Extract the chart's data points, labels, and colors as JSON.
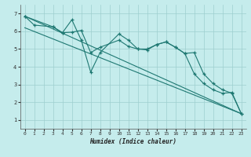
{
  "xlabel": "Humidex (Indice chaleur)",
  "background_color": "#c5ecec",
  "grid_color": "#9ecece",
  "line_color": "#1e7872",
  "xlim": [
    -0.5,
    23.5
  ],
  "ylim": [
    0.5,
    7.5
  ],
  "yticks": [
    1,
    2,
    3,
    4,
    5,
    6,
    7
  ],
  "xticks": [
    0,
    1,
    2,
    3,
    4,
    5,
    6,
    7,
    8,
    9,
    10,
    11,
    12,
    13,
    14,
    15,
    16,
    17,
    18,
    19,
    20,
    21,
    22,
    23
  ],
  "line1": {
    "x": [
      0,
      1,
      3,
      4,
      5,
      6,
      7,
      8,
      10,
      11,
      12,
      13,
      14,
      15,
      16,
      17,
      18,
      19,
      20,
      21,
      22,
      23
    ],
    "y": [
      6.85,
      6.35,
      6.25,
      5.92,
      6.65,
      5.5,
      3.7,
      4.8,
      5.85,
      5.5,
      5.0,
      4.95,
      5.25,
      5.4,
      5.1,
      4.75,
      3.6,
      3.05,
      2.7,
      2.5,
      2.55,
      1.35
    ]
  },
  "line2": {
    "x": [
      0,
      3,
      4,
      5,
      6,
      7,
      8,
      10,
      11,
      12,
      13,
      14,
      15,
      16,
      17,
      18,
      19,
      20,
      21,
      22,
      23
    ],
    "y": [
      6.85,
      6.25,
      5.92,
      5.95,
      6.05,
      4.8,
      5.1,
      5.5,
      5.15,
      5.0,
      5.0,
      5.25,
      5.4,
      5.1,
      4.75,
      4.8,
      3.6,
      3.05,
      2.7,
      2.5,
      1.35
    ]
  },
  "line3_straight": {
    "x": [
      0,
      23
    ],
    "y": [
      6.85,
      1.35
    ]
  },
  "line4_straight": {
    "x": [
      0,
      23
    ],
    "y": [
      6.2,
      1.35
    ]
  }
}
